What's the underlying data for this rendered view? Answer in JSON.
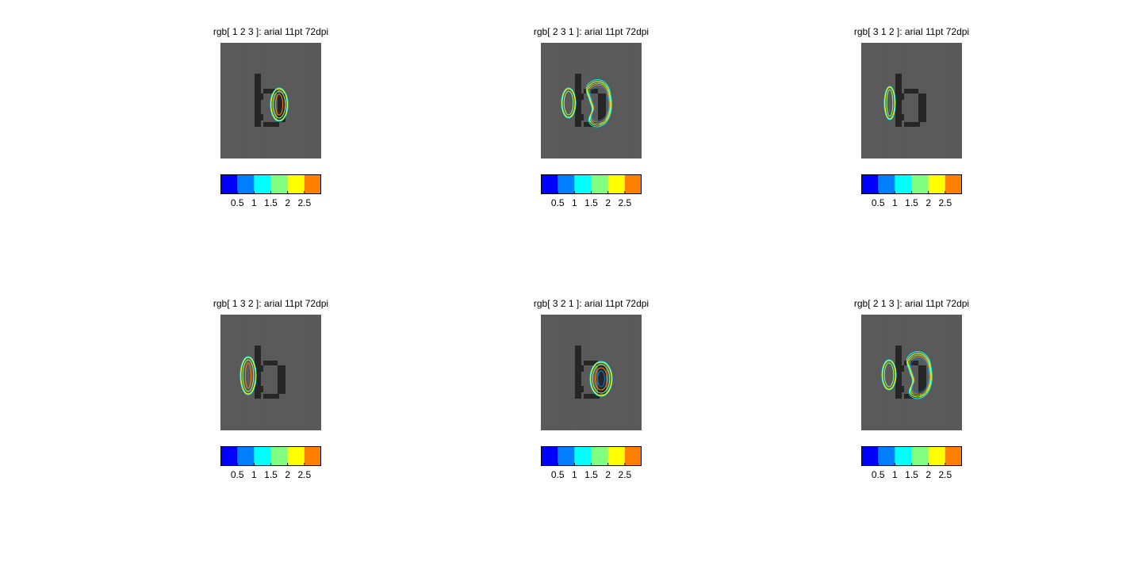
{
  "chart_data": {
    "type": "heatmap",
    "panels": [
      {
        "title": "rgb[ 1 2 3 ]: arial 11pt 72dpi",
        "contours": "right-bowl"
      },
      {
        "title": "rgb[ 2 3 1 ]: arial 11pt 72dpi",
        "contours": "left-and-right-kidney"
      },
      {
        "title": "rgb[ 3 1 2 ]: arial 11pt 72dpi",
        "contours": "left"
      },
      {
        "title": "rgb[ 1 3 2 ]: arial 11pt 72dpi",
        "contours": "left-large"
      },
      {
        "title": "rgb[ 3 2 1 ]: arial 11pt 72dpi",
        "contours": "right-half"
      },
      {
        "title": "rgb[ 2 1 3 ]: arial 11pt 72dpi",
        "contours": "left-and-right-kidney"
      }
    ],
    "colorbar": {
      "colors": [
        "#0000ff",
        "#0080ff",
        "#00ffff",
        "#80ff80",
        "#ffff00",
        "#ff8000"
      ],
      "range": [
        0,
        3
      ],
      "ticks": [
        "0.5",
        "1",
        "1.5",
        "2",
        "2.5"
      ],
      "tick_values": [
        0.5,
        1,
        1.5,
        2,
        2.5
      ]
    },
    "image_background": "#5a5a5a",
    "glyph_color": "#262626",
    "glyph": "b"
  }
}
